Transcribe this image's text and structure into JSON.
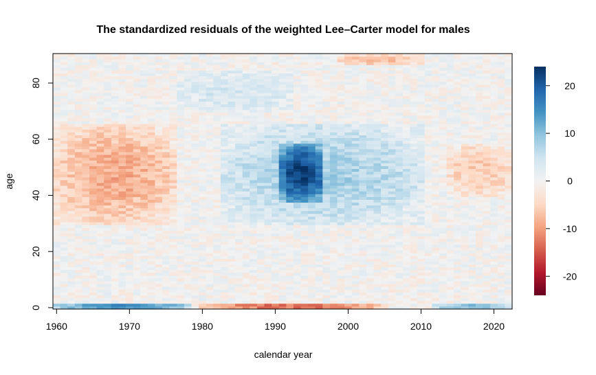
{
  "chart_data": {
    "type": "heatmap",
    "title": "The standardized residuals of the weighted Lee–Carter model for males",
    "xlabel": "calendar year",
    "ylabel": "age",
    "xlim": [
      1959.5,
      2022.5
    ],
    "ylim": [
      -0.5,
      90.5
    ],
    "x_ticks": [
      "1960",
      "1970",
      "1980",
      "1990",
      "2000",
      "2010",
      "2020"
    ],
    "x_tick_values": [
      1960,
      1970,
      1980,
      1990,
      2000,
      2010,
      2020
    ],
    "y_ticks": [
      "0",
      "20",
      "40",
      "60",
      "80"
    ],
    "y_tick_values": [
      0,
      20,
      40,
      60,
      80
    ],
    "colorbar": {
      "range": [
        -24,
        24
      ],
      "ticks": [
        "20",
        "10",
        "0",
        "-10",
        "-20"
      ],
      "tick_values": [
        20,
        10,
        0,
        -10,
        -20
      ],
      "palette": [
        "#67001f",
        "#b2182b",
        "#d6604d",
        "#f4a582",
        "#fddbc7",
        "#f2f2f2",
        "#d1e5f0",
        "#92c5de",
        "#4393c3",
        "#2166ac",
        "#053061"
      ]
    },
    "years": {
      "start": 1960,
      "end": 2022
    },
    "ages": {
      "start": 0,
      "end": 90
    },
    "regions": [
      {
        "name": "age 0 early years",
        "years": [
          1960,
          1978
        ],
        "ages": [
          0,
          1
        ],
        "value": 16
      },
      {
        "name": "age 0 1980s-1990s",
        "years": [
          1980,
          2005
        ],
        "ages": [
          0,
          1
        ],
        "value": -14
      },
      {
        "name": "age 0 late years",
        "years": [
          2012,
          2022
        ],
        "ages": [
          0,
          1
        ],
        "value": 10
      },
      {
        "name": "adult ages early years",
        "years": [
          1960,
          1976
        ],
        "ages": [
          30,
          65
        ],
        "value": -9
      },
      {
        "name": "adult ages 1985-2010",
        "years": [
          1983,
          2010
        ],
        "ages": [
          30,
          65
        ],
        "value": 8
      },
      {
        "name": "peak 1991-1996",
        "years": [
          1991,
          1996
        ],
        "ages": [
          38,
          58
        ],
        "value": 15
      },
      {
        "name": "adult ages late years",
        "years": [
          2014,
          2022
        ],
        "ages": [
          40,
          58
        ],
        "value": -6
      },
      {
        "name": "old ages 1980s",
        "years": [
          1977,
          1992
        ],
        "ages": [
          70,
          84
        ],
        "value": 4
      },
      {
        "name": "oldest ages 2000s",
        "years": [
          1999,
          2010
        ],
        "ages": [
          87,
          90
        ],
        "value": -7
      }
    ]
  }
}
